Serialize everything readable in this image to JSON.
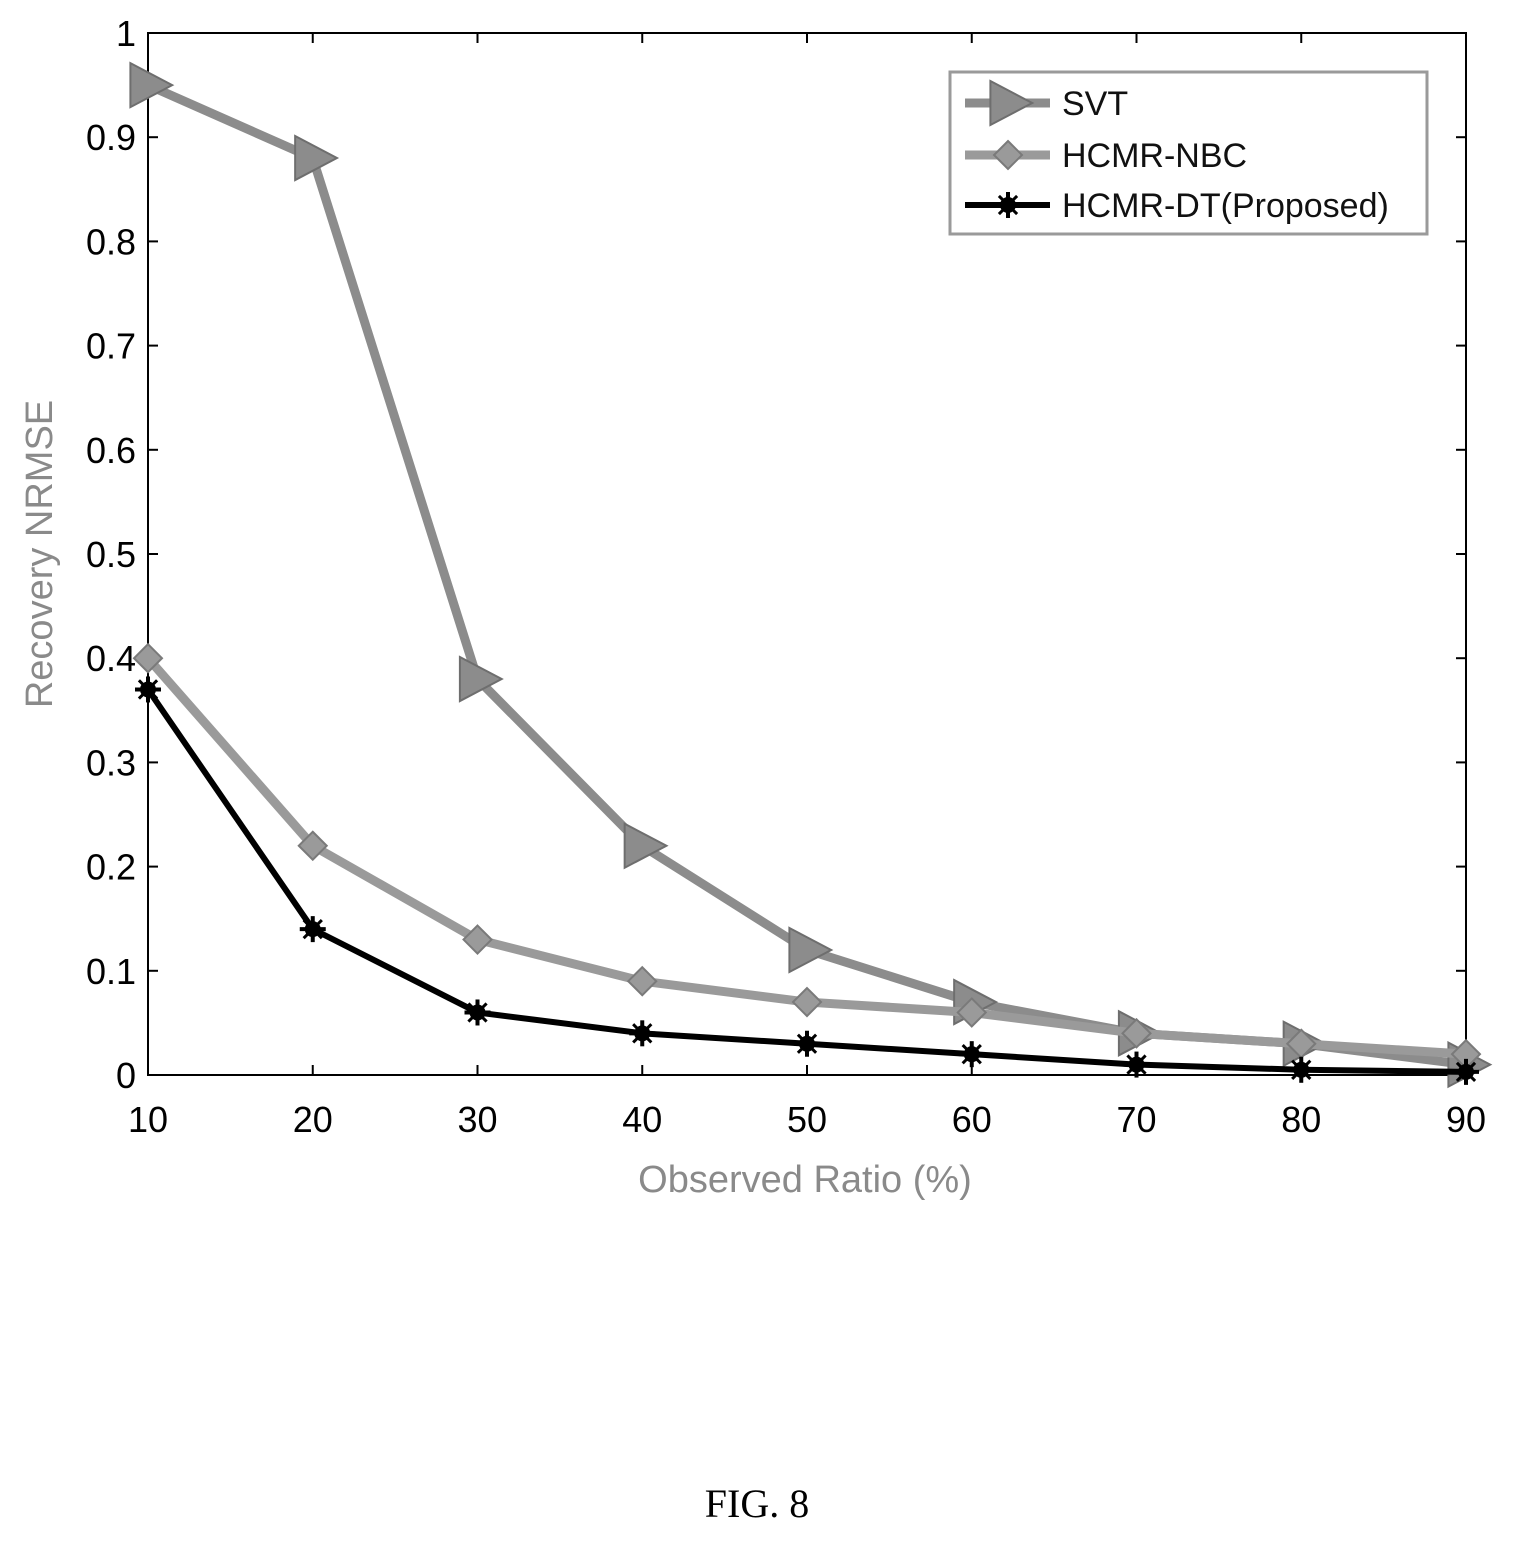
{
  "chart_data": {
    "type": "line",
    "x": [
      10,
      20,
      30,
      40,
      50,
      60,
      70,
      80,
      90
    ],
    "xlabel": "Observed Ratio (%)",
    "ylabel": "Recovery NRMSE",
    "xlim": [
      10,
      90
    ],
    "ylim": [
      0,
      1
    ],
    "xticks": [
      "10",
      "20",
      "30",
      "40",
      "50",
      "60",
      "70",
      "80",
      "90"
    ],
    "yticks": [
      "0",
      "0.1",
      "0.2",
      "0.3",
      "0.4",
      "0.5",
      "0.6",
      "0.7",
      "0.8",
      "0.9",
      "1"
    ],
    "grid": false,
    "legend_position": "top-right",
    "series": [
      {
        "name": "SVT",
        "values": [
          0.95,
          0.88,
          0.38,
          0.22,
          0.12,
          0.07,
          0.04,
          0.03,
          0.01
        ],
        "color": "#8c8c8c",
        "marker": "triangle-right"
      },
      {
        "name": "HCMR-NBC",
        "values": [
          0.4,
          0.22,
          0.13,
          0.09,
          0.07,
          0.06,
          0.04,
          0.03,
          0.02
        ],
        "color": "#9a9a9a",
        "marker": "diamond"
      },
      {
        "name": "HCMR-DT(Proposed)",
        "values": [
          0.37,
          0.14,
          0.06,
          0.04,
          0.03,
          0.02,
          0.01,
          0.005,
          0.003
        ],
        "color": "#000000",
        "marker": "star"
      }
    ]
  },
  "caption": "FIG. 8"
}
